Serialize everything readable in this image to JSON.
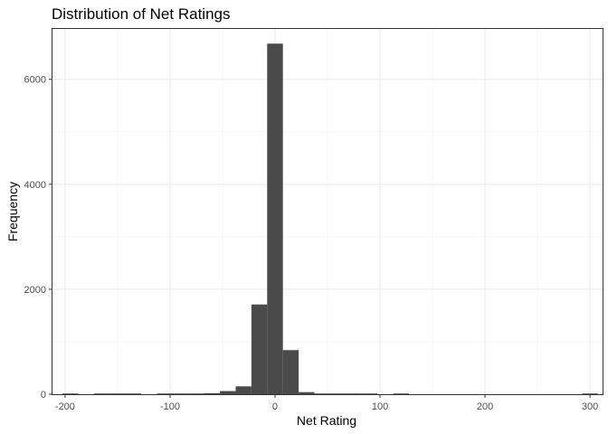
{
  "chart_data": {
    "type": "bar",
    "title": "Distribution of Net Ratings",
    "xlabel": "Net Rating",
    "ylabel": "Frequency",
    "xlim": [
      -212,
      312
    ],
    "ylim": [
      0,
      6960
    ],
    "x_ticks": [
      -200,
      -100,
      0,
      100,
      200,
      300
    ],
    "x_tick_labels": [
      "-200",
      "-100",
      "0",
      "100",
      "200",
      "300"
    ],
    "y_ticks": [
      0,
      2000,
      4000,
      6000
    ],
    "y_tick_labels": [
      "0",
      "2000",
      "4000",
      "6000"
    ],
    "grid": true,
    "legend": "none",
    "bin_width": 15,
    "bins": [
      {
        "x_min": -202.5,
        "x_max": -187.5,
        "count": 2
      },
      {
        "x_min": -172.5,
        "x_max": -157.5,
        "count": 3
      },
      {
        "x_min": -157.5,
        "x_max": -142.5,
        "count": 2
      },
      {
        "x_min": -142.5,
        "x_max": -127.5,
        "count": 2
      },
      {
        "x_min": -112.5,
        "x_max": -97.5,
        "count": 2
      },
      {
        "x_min": -97.5,
        "x_max": -82.5,
        "count": 4
      },
      {
        "x_min": -82.5,
        "x_max": -67.5,
        "count": 8
      },
      {
        "x_min": -67.5,
        "x_max": -52.5,
        "count": 20
      },
      {
        "x_min": -52.5,
        "x_max": -37.5,
        "count": 60
      },
      {
        "x_min": -37.5,
        "x_max": -22.5,
        "count": 150
      },
      {
        "x_min": -22.5,
        "x_max": -7.5,
        "count": 1710
      },
      {
        "x_min": -7.5,
        "x_max": 7.5,
        "count": 6680
      },
      {
        "x_min": 7.5,
        "x_max": 22.5,
        "count": 840
      },
      {
        "x_min": 22.5,
        "x_max": 37.5,
        "count": 40
      },
      {
        "x_min": 37.5,
        "x_max": 52.5,
        "count": 8
      },
      {
        "x_min": 52.5,
        "x_max": 67.5,
        "count": 4
      },
      {
        "x_min": 67.5,
        "x_max": 82.5,
        "count": 3
      },
      {
        "x_min": 82.5,
        "x_max": 97.5,
        "count": 2
      },
      {
        "x_min": 112.5,
        "x_max": 127.5,
        "count": 2
      },
      {
        "x_min": 292.5,
        "x_max": 307.5,
        "count": 2
      }
    ]
  }
}
